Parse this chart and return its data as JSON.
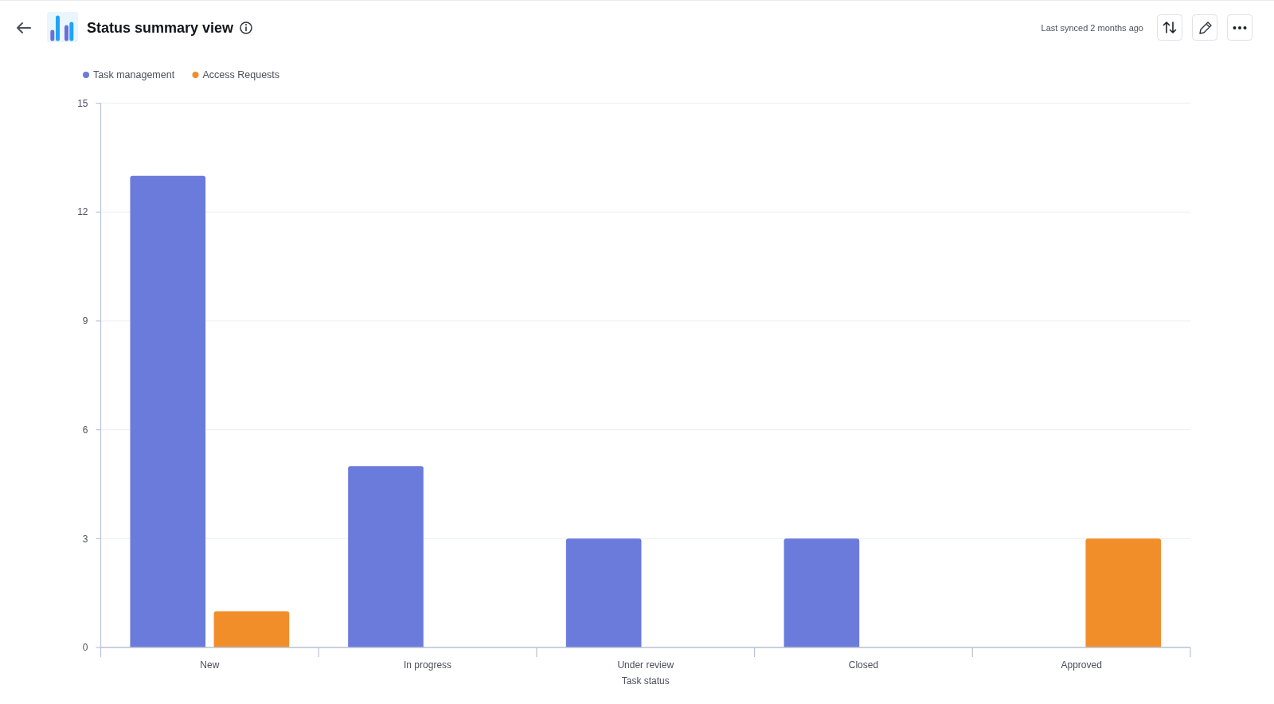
{
  "chart_data": {
    "type": "bar",
    "title": "Status summary view",
    "annotations": [
      "Last synced 2 months ago"
    ],
    "categories": [
      "New",
      "In progress",
      "Under review",
      "Closed",
      "Approved"
    ],
    "series": [
      {
        "name": "Task management",
        "color": "#6b7bdc",
        "values": [
          13,
          5,
          3,
          3,
          null
        ]
      },
      {
        "name": "Access Requests",
        "color": "#f28e2a",
        "values": [
          1,
          null,
          null,
          null,
          3
        ]
      }
    ],
    "xlabel": "Task status",
    "ylim": [
      0,
      15
    ],
    "yticks": [
      0,
      3,
      6,
      9,
      12,
      15
    ],
    "grid": "y",
    "legend": "top left"
  }
}
